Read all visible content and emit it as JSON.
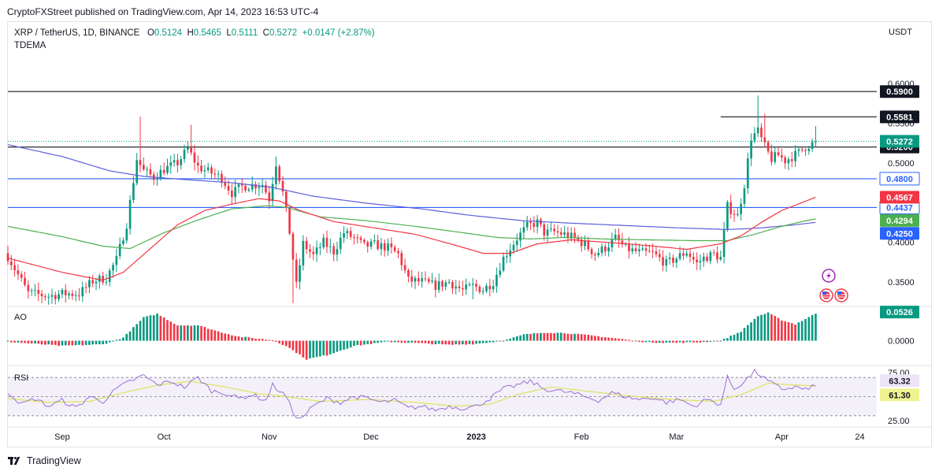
{
  "header": {
    "publisher": "CryptoFXStreet published on TradingView.com, Apr 14, 2023 16:53 UTC-4"
  },
  "footer": {
    "brand": "TradingView"
  },
  "colors": {
    "up": "#089981",
    "down": "#f23645",
    "ema_red": "#f23645",
    "ema_green": "#4caf50",
    "ema_blue": "#5b5fd9",
    "rsi": "#9c6fd6",
    "rsi_ma": "#dbe35a",
    "hline_blue": "#2962ff"
  },
  "chart_data": [
    {
      "type": "candlestick",
      "title": "XRP / TetherUS, 1D, BINANCE",
      "legend": {
        "symbol": "XRP / TetherUS, 1D, BINANCE",
        "open_label": "O",
        "open": "0.5124",
        "high_label": "H",
        "high": "0.5465",
        "low_label": "L",
        "low": "0.5111",
        "close_label": "C",
        "close": "0.5272",
        "change": "+0.0147 (+2.87%)",
        "indicator": "TDEMA"
      },
      "currency": "USDT",
      "ylim": [
        0.32,
        0.62
      ],
      "y_ticks": [
        "0.6000",
        "0.5500",
        "0.5000",
        "0.4500",
        "0.4000",
        "0.3500"
      ],
      "y_tick_values": [
        0.6,
        0.55,
        0.5,
        0.45,
        0.4,
        0.35
      ],
      "x_labels": [
        "Sep",
        "Oct",
        "Nov",
        "Dec",
        "2023",
        "Feb",
        "Mar",
        "Apr",
        "24"
      ],
      "x_label_days": [
        0,
        30,
        61,
        91,
        122,
        153,
        181,
        212,
        235
      ],
      "first_day_offset": -16,
      "horizontal_levels": [
        {
          "value": 0.59,
          "label": "0.5900",
          "color": "#131722",
          "style": "solid",
          "from_day": -16
        },
        {
          "value": 0.5581,
          "label": "0.5581",
          "color": "#131722",
          "style": "solid",
          "from_day": 194
        },
        {
          "value": 0.52,
          "label": "0.5200",
          "color": "#131722",
          "style": "solid",
          "from_day": -16
        },
        {
          "value": 0.48,
          "label": "0.4800",
          "color": "#2962ff",
          "style": "solid",
          "from_day": -16
        },
        {
          "value": 0.4437,
          "label": "0.4437",
          "color": "#2962ff",
          "style": "solid",
          "from_day": -16
        }
      ],
      "price_badges": [
        {
          "value": 0.5272,
          "label": "0.5272",
          "bg": "#089981",
          "fg": "#ffffff"
        },
        {
          "value": 0.4567,
          "label": "0.4567",
          "bg": "#f23645",
          "fg": "#ffffff"
        },
        {
          "value": 0.4294,
          "label": "0.4294",
          "bg": "#4caf50",
          "fg": "#ffffff"
        },
        {
          "value": 0.425,
          "label": "0.4250",
          "bg": "#2962ff",
          "fg": "#ffffff"
        }
      ],
      "close_keyframes": [
        [
          -16,
          0.382
        ],
        [
          -10,
          0.336
        ],
        [
          -4,
          0.332
        ],
        [
          0,
          0.335
        ],
        [
          5,
          0.335
        ],
        [
          9,
          0.351
        ],
        [
          13,
          0.355
        ],
        [
          16,
          0.378
        ],
        [
          19,
          0.423
        ],
        [
          22,
          0.505
        ],
        [
          24,
          0.49
        ],
        [
          27,
          0.482
        ],
        [
          30,
          0.492
        ],
        [
          34,
          0.5
        ],
        [
          37,
          0.518
        ],
        [
          40,
          0.495
        ],
        [
          44,
          0.487
        ],
        [
          47,
          0.481
        ],
        [
          50,
          0.462
        ],
        [
          53,
          0.47
        ],
        [
          56,
          0.472
        ],
        [
          59,
          0.473
        ],
        [
          61,
          0.455
        ],
        [
          63,
          0.5
        ],
        [
          65,
          0.462
        ],
        [
          67,
          0.413
        ],
        [
          69,
          0.345
        ],
        [
          71,
          0.398
        ],
        [
          74,
          0.383
        ],
        [
          77,
          0.4
        ],
        [
          80,
          0.388
        ],
        [
          83,
          0.412
        ],
        [
          86,
          0.405
        ],
        [
          89,
          0.395
        ],
        [
          92,
          0.397
        ],
        [
          96,
          0.393
        ],
        [
          99,
          0.385
        ],
        [
          102,
          0.352
        ],
        [
          106,
          0.35
        ],
        [
          110,
          0.345
        ],
        [
          114,
          0.35
        ],
        [
          118,
          0.339
        ],
        [
          121,
          0.345
        ],
        [
          124,
          0.34
        ],
        [
          127,
          0.35
        ],
        [
          130,
          0.38
        ],
        [
          134,
          0.405
        ],
        [
          137,
          0.42
        ],
        [
          140,
          0.425
        ],
        [
          142,
          0.412
        ],
        [
          145,
          0.413
        ],
        [
          148,
          0.41
        ],
        [
          151,
          0.405
        ],
        [
          154,
          0.397
        ],
        [
          157,
          0.385
        ],
        [
          160,
          0.393
        ],
        [
          163,
          0.405
        ],
        [
          166,
          0.392
        ],
        [
          170,
          0.387
        ],
        [
          174,
          0.386
        ],
        [
          178,
          0.373
        ],
        [
          181,
          0.38
        ],
        [
          184,
          0.388
        ],
        [
          187,
          0.373
        ],
        [
          189,
          0.38
        ],
        [
          192,
          0.385
        ],
        [
          194,
          0.38
        ],
        [
          196,
          0.445
        ],
        [
          199,
          0.433
        ],
        [
          201,
          0.473
        ],
        [
          203,
          0.532
        ],
        [
          205,
          0.54
        ],
        [
          207,
          0.52
        ],
        [
          209,
          0.505
        ],
        [
          211,
          0.51
        ],
        [
          213,
          0.503
        ],
        [
          215,
          0.508
        ],
        [
          217,
          0.513
        ],
        [
          219,
          0.52
        ],
        [
          222,
          0.527
        ]
      ],
      "spikes": [
        {
          "day": 23,
          "high": 0.558
        },
        {
          "day": 38,
          "high": 0.548
        },
        {
          "day": 63,
          "high": 0.508
        },
        {
          "day": 68,
          "low": 0.323
        },
        {
          "day": 121,
          "low": 0.328
        },
        {
          "day": 205,
          "high": 0.585
        },
        {
          "day": 207,
          "high": 0.562
        },
        {
          "day": 222,
          "high": 0.5465
        }
      ],
      "ema_red_keyframes": [
        [
          -16,
          0.38
        ],
        [
          0,
          0.362
        ],
        [
          12,
          0.352
        ],
        [
          18,
          0.362
        ],
        [
          26,
          0.392
        ],
        [
          34,
          0.422
        ],
        [
          42,
          0.44
        ],
        [
          50,
          0.448
        ],
        [
          58,
          0.455
        ],
        [
          64,
          0.452
        ],
        [
          70,
          0.44
        ],
        [
          80,
          0.426
        ],
        [
          92,
          0.418
        ],
        [
          104,
          0.41
        ],
        [
          116,
          0.396
        ],
        [
          124,
          0.386
        ],
        [
          132,
          0.386
        ],
        [
          140,
          0.398
        ],
        [
          150,
          0.403
        ],
        [
          160,
          0.4
        ],
        [
          172,
          0.396
        ],
        [
          184,
          0.391
        ],
        [
          194,
          0.398
        ],
        [
          200,
          0.408
        ],
        [
          206,
          0.425
        ],
        [
          212,
          0.44
        ],
        [
          218,
          0.45
        ],
        [
          222,
          0.4567
        ]
      ],
      "ema_green_keyframes": [
        [
          -16,
          0.42
        ],
        [
          0,
          0.407
        ],
        [
          12,
          0.395
        ],
        [
          20,
          0.392
        ],
        [
          30,
          0.412
        ],
        [
          40,
          0.428
        ],
        [
          50,
          0.442
        ],
        [
          60,
          0.446
        ],
        [
          66,
          0.444
        ],
        [
          76,
          0.432
        ],
        [
          90,
          0.427
        ],
        [
          104,
          0.42
        ],
        [
          118,
          0.412
        ],
        [
          128,
          0.406
        ],
        [
          138,
          0.404
        ],
        [
          148,
          0.406
        ],
        [
          160,
          0.404
        ],
        [
          172,
          0.403
        ],
        [
          186,
          0.402
        ],
        [
          196,
          0.402
        ],
        [
          204,
          0.41
        ],
        [
          212,
          0.42
        ],
        [
          218,
          0.426
        ],
        [
          222,
          0.4294
        ]
      ],
      "ema_blue_keyframes": [
        [
          -16,
          0.523
        ],
        [
          0,
          0.508
        ],
        [
          14,
          0.49
        ],
        [
          24,
          0.483
        ],
        [
          36,
          0.479
        ],
        [
          50,
          0.475
        ],
        [
          62,
          0.469
        ],
        [
          74,
          0.458
        ],
        [
          90,
          0.449
        ],
        [
          106,
          0.442
        ],
        [
          120,
          0.434
        ],
        [
          136,
          0.427
        ],
        [
          150,
          0.424
        ],
        [
          166,
          0.421
        ],
        [
          182,
          0.418
        ],
        [
          196,
          0.416
        ],
        [
          206,
          0.418
        ],
        [
          216,
          0.422
        ],
        [
          222,
          0.425
        ]
      ]
    },
    {
      "type": "bar",
      "title": "AO",
      "value_label": "0.0526",
      "value_bg": "#089981",
      "ylim": [
        -0.045,
        0.065
      ],
      "y_ticks": [
        "0.0000"
      ],
      "zero_value": 0,
      "keyframes": [
        [
          -16,
          -0.002
        ],
        [
          0,
          -0.01
        ],
        [
          12,
          -0.007
        ],
        [
          18,
          0.006
        ],
        [
          24,
          0.045
        ],
        [
          28,
          0.052
        ],
        [
          34,
          0.03
        ],
        [
          40,
          0.03
        ],
        [
          46,
          0.018
        ],
        [
          52,
          0.008
        ],
        [
          58,
          0.004
        ],
        [
          62,
          0.001
        ],
        [
          66,
          -0.01
        ],
        [
          72,
          -0.036
        ],
        [
          78,
          -0.028
        ],
        [
          86,
          -0.01
        ],
        [
          96,
          -0.002
        ],
        [
          106,
          -0.005
        ],
        [
          114,
          -0.008
        ],
        [
          122,
          -0.006
        ],
        [
          130,
          0.0
        ],
        [
          136,
          0.012
        ],
        [
          142,
          0.016
        ],
        [
          148,
          0.015
        ],
        [
          156,
          0.01
        ],
        [
          164,
          0.004
        ],
        [
          172,
          -0.003
        ],
        [
          180,
          -0.004
        ],
        [
          188,
          -0.003
        ],
        [
          194,
          0.0
        ],
        [
          200,
          0.018
        ],
        [
          205,
          0.048
        ],
        [
          208,
          0.054
        ],
        [
          212,
          0.04
        ],
        [
          216,
          0.032
        ],
        [
          222,
          0.0526
        ]
      ]
    },
    {
      "type": "line",
      "title": "RSI",
      "series": [
        {
          "name": "RSI",
          "value_label": "63.32",
          "color": "#9c6fd6"
        },
        {
          "name": "RSI MA",
          "value_label": "61.30",
          "color": "#dbe35a"
        }
      ],
      "ylim": [
        20,
        80
      ],
      "y_ticks": [
        "75.00",
        "25.00"
      ],
      "band_upper": 70,
      "band_lower": 30,
      "rsi_keyframes": [
        [
          -16,
          55
        ],
        [
          -12,
          42
        ],
        [
          -8,
          48
        ],
        [
          -4,
          40
        ],
        [
          0,
          46
        ],
        [
          4,
          38
        ],
        [
          8,
          50
        ],
        [
          12,
          45
        ],
        [
          16,
          58
        ],
        [
          20,
          66
        ],
        [
          24,
          72
        ],
        [
          28,
          62
        ],
        [
          32,
          66
        ],
        [
          36,
          60
        ],
        [
          40,
          70
        ],
        [
          44,
          56
        ],
        [
          48,
          54
        ],
        [
          52,
          48
        ],
        [
          56,
          52
        ],
        [
          60,
          46
        ],
        [
          62,
          62
        ],
        [
          66,
          50
        ],
        [
          68,
          34
        ],
        [
          70,
          26
        ],
        [
          74,
          40
        ],
        [
          78,
          48
        ],
        [
          82,
          44
        ],
        [
          86,
          50
        ],
        [
          90,
          48
        ],
        [
          94,
          44
        ],
        [
          98,
          46
        ],
        [
          102,
          38
        ],
        [
          106,
          40
        ],
        [
          110,
          36
        ],
        [
          114,
          40
        ],
        [
          118,
          38
        ],
        [
          122,
          40
        ],
        [
          126,
          48
        ],
        [
          130,
          58
        ],
        [
          134,
          62
        ],
        [
          138,
          66
        ],
        [
          142,
          58
        ],
        [
          146,
          56
        ],
        [
          150,
          54
        ],
        [
          154,
          50
        ],
        [
          158,
          46
        ],
        [
          162,
          54
        ],
        [
          166,
          50
        ],
        [
          170,
          47
        ],
        [
          174,
          49
        ],
        [
          178,
          44
        ],
        [
          182,
          47
        ],
        [
          186,
          40
        ],
        [
          190,
          47
        ],
        [
          194,
          42
        ],
        [
          196,
          70
        ],
        [
          198,
          58
        ],
        [
          201,
          66
        ],
        [
          204,
          76
        ],
        [
          206,
          72
        ],
        [
          208,
          66
        ],
        [
          212,
          58
        ],
        [
          216,
          60
        ],
        [
          220,
          57
        ],
        [
          222,
          63
        ]
      ],
      "ma_keyframes": [
        [
          -16,
          48
        ],
        [
          -4,
          44
        ],
        [
          8,
          45
        ],
        [
          18,
          54
        ],
        [
          28,
          62
        ],
        [
          38,
          66
        ],
        [
          48,
          60
        ],
        [
          58,
          53
        ],
        [
          66,
          50
        ],
        [
          76,
          45
        ],
        [
          90,
          47
        ],
        [
          104,
          44
        ],
        [
          116,
          40
        ],
        [
          126,
          42
        ],
        [
          134,
          52
        ],
        [
          144,
          60
        ],
        [
          154,
          56
        ],
        [
          166,
          51
        ],
        [
          180,
          47
        ],
        [
          192,
          45
        ],
        [
          200,
          52
        ],
        [
          208,
          64
        ],
        [
          216,
          62
        ],
        [
          222,
          61.3
        ]
      ]
    }
  ]
}
